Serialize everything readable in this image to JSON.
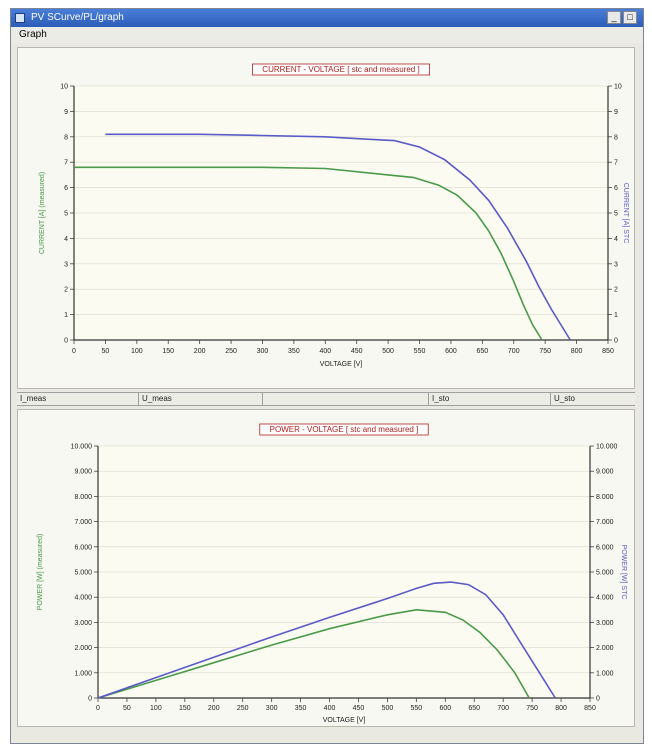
{
  "window": {
    "title": "PV SCurve/PL/graph",
    "minimize": "_",
    "close": "□"
  },
  "menu": {
    "graph_label": "Graph"
  },
  "status": {
    "cells": [
      "I_meas",
      "U_meas",
      "",
      "I_sto",
      "U_sto"
    ]
  },
  "colors": {
    "measured": "#4a9a4a",
    "stc": "#5a5ac8",
    "title": "#b02020"
  },
  "chart_data": [
    {
      "type": "line",
      "title": "CURRENT - VOLTAGE [ stc and measured ]",
      "xlabel": "VOLTAGE [V]",
      "ylabel_left": "CURRENT [A] (measured)",
      "ylabel_right": "CURRENT [A] STC",
      "xlim": [
        0,
        850
      ],
      "ylim": [
        0,
        10
      ],
      "x_ticks": [
        "0",
        "50",
        "100",
        "150",
        "200",
        "250",
        "300",
        "350",
        "400",
        "450",
        "500",
        "550",
        "600",
        "650",
        "700",
        "750",
        "800",
        "850"
      ],
      "y_ticks": [
        "0",
        "1",
        "2",
        "3",
        "4",
        "5",
        "6",
        "7",
        "8",
        "9",
        "10"
      ],
      "grid": true,
      "series": [
        {
          "key": "measured",
          "x": [
            0,
            50,
            100,
            200,
            300,
            400,
            500,
            540,
            580,
            610,
            640,
            660,
            680,
            700,
            715,
            730,
            745
          ],
          "y": [
            6.8,
            6.8,
            6.8,
            6.8,
            6.8,
            6.75,
            6.5,
            6.4,
            6.1,
            5.7,
            5.0,
            4.3,
            3.4,
            2.3,
            1.4,
            0.6,
            0
          ]
        },
        {
          "key": "stc",
          "x": [
            50,
            100,
            200,
            300,
            400,
            470,
            510,
            550,
            590,
            630,
            660,
            690,
            720,
            740,
            760,
            790
          ],
          "y": [
            8.1,
            8.1,
            8.1,
            8.05,
            8.0,
            7.9,
            7.85,
            7.6,
            7.1,
            6.3,
            5.5,
            4.4,
            3.1,
            2.1,
            1.2,
            0
          ]
        }
      ]
    },
    {
      "type": "line",
      "title": "POWER - VOLTAGE [ stc and measured ]",
      "xlabel": "VOLTAGE [V]",
      "ylabel_left": "POWER [W] (measured)",
      "ylabel_right": "POWER [W] STC",
      "xlim": [
        0,
        850
      ],
      "ylim": [
        0,
        10000
      ],
      "x_ticks": [
        "0",
        "50",
        "100",
        "150",
        "200",
        "250",
        "300",
        "350",
        "400",
        "450",
        "500",
        "550",
        "600",
        "650",
        "700",
        "750",
        "800",
        "850"
      ],
      "y_ticks": [
        "0",
        "1.000",
        "2.000",
        "3.000",
        "4.000",
        "5.000",
        "6.000",
        "7.000",
        "8.000",
        "9.000",
        "10.000"
      ],
      "grid": true,
      "series": [
        {
          "key": "measured",
          "x": [
            0,
            100,
            200,
            300,
            400,
            500,
            550,
            600,
            630,
            660,
            690,
            720,
            745
          ],
          "y": [
            0,
            700,
            1400,
            2100,
            2750,
            3300,
            3500,
            3400,
            3100,
            2600,
            1900,
            1000,
            0
          ]
        },
        {
          "key": "stc",
          "x": [
            0,
            100,
            200,
            300,
            400,
            500,
            550,
            580,
            610,
            640,
            670,
            700,
            730,
            760,
            790
          ],
          "y": [
            0,
            810,
            1620,
            2420,
            3200,
            3950,
            4350,
            4550,
            4600,
            4500,
            4100,
            3300,
            2200,
            1100,
            0
          ]
        }
      ]
    }
  ]
}
